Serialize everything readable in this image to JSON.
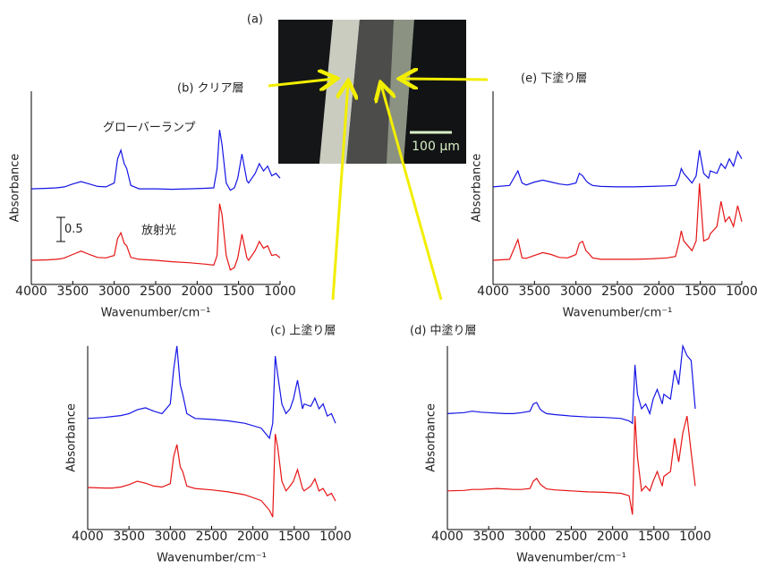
{
  "micrograph": {
    "label": "(a)",
    "scale_bar": "100 μm"
  },
  "chart_data": [
    {
      "type": "line",
      "title": "(b) クリア層",
      "x_label": "Wavenumber/cm⁻¹",
      "y_label": "Absorbance",
      "xlim": [
        4000,
        1000
      ],
      "xticks": [
        4000,
        3500,
        3000,
        2500,
        2000,
        1500,
        1000
      ],
      "ylim": [
        0,
        4
      ],
      "scale_bar": 0.5,
      "x": [
        4000,
        3800,
        3700,
        3650,
        3600,
        3500,
        3400,
        3300,
        3200,
        3100,
        3000,
        2960,
        2920,
        2880,
        2850,
        2800,
        2700,
        2500,
        2300,
        2100,
        1900,
        1800,
        1760,
        1730,
        1700,
        1650,
        1600,
        1550,
        1510,
        1460,
        1400,
        1380,
        1300,
        1250,
        1200,
        1150,
        1100,
        1050,
        1000
      ],
      "series": [
        {
          "name": "グローバーランプ",
          "color": "#1414e6",
          "values": [
            1.98,
            1.99,
            2.0,
            2.01,
            2.02,
            2.08,
            2.13,
            2.08,
            2.03,
            2.02,
            2.1,
            2.6,
            2.78,
            2.5,
            2.4,
            2.05,
            1.98,
            1.98,
            1.97,
            1.98,
            1.99,
            2.0,
            2.4,
            3.2,
            2.9,
            2.1,
            1.95,
            2.0,
            2.2,
            2.7,
            2.15,
            2.1,
            2.3,
            2.5,
            2.35,
            2.45,
            2.25,
            2.3,
            2.2
          ]
        },
        {
          "name": "放射光",
          "color": "#e61414",
          "values": [
            0.5,
            0.51,
            0.52,
            0.53,
            0.55,
            0.62,
            0.69,
            0.62,
            0.56,
            0.55,
            0.6,
            0.95,
            1.07,
            0.85,
            0.8,
            0.56,
            0.52,
            0.5,
            0.47,
            0.45,
            0.42,
            0.4,
            0.6,
            1.67,
            1.45,
            0.6,
            0.3,
            0.35,
            0.55,
            1.04,
            0.55,
            0.5,
            0.7,
            0.89,
            0.75,
            0.8,
            0.6,
            0.62,
            0.55
          ]
        }
      ]
    },
    {
      "type": "line",
      "title": "(c) 上塗り層",
      "x_label": "Wavenumber/cm⁻¹",
      "y_label": "Absorbance",
      "xlim": [
        4000,
        1000
      ],
      "xticks": [
        4000,
        3500,
        3000,
        2500,
        2000,
        1500,
        1000
      ],
      "ylim": [
        0,
        3.8
      ],
      "x": [
        4000,
        3800,
        3700,
        3650,
        3600,
        3500,
        3400,
        3300,
        3200,
        3100,
        3000,
        2960,
        2920,
        2880,
        2850,
        2800,
        2700,
        2500,
        2300,
        2100,
        1900,
        1800,
        1760,
        1730,
        1700,
        1650,
        1600,
        1550,
        1510,
        1460,
        1400,
        1380,
        1300,
        1250,
        1200,
        1150,
        1100,
        1050,
        1000
      ],
      "series": [
        {
          "color": "#1414e6",
          "values": [
            2.3,
            2.32,
            2.34,
            2.35,
            2.36,
            2.4,
            2.48,
            2.52,
            2.45,
            2.4,
            2.6,
            3.3,
            3.8,
            3.0,
            2.8,
            2.4,
            2.3,
            2.28,
            2.25,
            2.2,
            2.1,
            1.89,
            2.2,
            3.59,
            3.2,
            2.6,
            2.4,
            2.5,
            2.7,
            3.09,
            2.5,
            2.6,
            2.55,
            2.72,
            2.5,
            2.6,
            2.35,
            2.4,
            2.2
          ]
        },
        {
          "color": "#e61414",
          "values": [
            0.87,
            0.86,
            0.86,
            0.87,
            0.88,
            0.93,
            1.0,
            0.96,
            0.9,
            0.88,
            0.95,
            1.5,
            1.76,
            1.3,
            1.2,
            0.9,
            0.85,
            0.82,
            0.78,
            0.72,
            0.6,
            0.4,
            0.26,
            1.98,
            1.7,
            1.0,
            0.8,
            0.9,
            1.0,
            1.24,
            0.85,
            0.8,
            0.9,
            1.05,
            0.8,
            0.85,
            0.7,
            0.75,
            0.59
          ]
        }
      ]
    },
    {
      "type": "line",
      "title": "(d) 中塗り層",
      "x_label": "Wavenumber/cm⁻¹",
      "y_label": "Absorbance",
      "xlim": [
        4000,
        1000
      ],
      "xticks": [
        4000,
        3500,
        3000,
        2500,
        2000,
        1500,
        1000
      ],
      "ylim": [
        0,
        3.8
      ],
      "x": [
        4000,
        3800,
        3700,
        3650,
        3600,
        3500,
        3400,
        3300,
        3200,
        3100,
        3000,
        2960,
        2920,
        2880,
        2850,
        2800,
        2700,
        2500,
        2300,
        2100,
        1900,
        1800,
        1760,
        1730,
        1700,
        1650,
        1600,
        1550,
        1510,
        1460,
        1400,
        1380,
        1300,
        1250,
        1200,
        1150,
        1100,
        1050,
        1000
      ],
      "series": [
        {
          "color": "#1414e6",
          "values": [
            2.4,
            2.42,
            2.45,
            2.44,
            2.43,
            2.42,
            2.41,
            2.4,
            2.4,
            2.42,
            2.45,
            2.6,
            2.63,
            2.5,
            2.45,
            2.4,
            2.38,
            2.35,
            2.33,
            2.32,
            2.3,
            2.25,
            2.2,
            3.41,
            2.8,
            2.5,
            2.6,
            2.4,
            2.7,
            2.9,
            2.6,
            2.8,
            2.7,
            3.3,
            3.0,
            3.8,
            3.6,
            3.5,
            2.5
          ]
        },
        {
          "color": "#e61414",
          "values": [
            0.8,
            0.81,
            0.83,
            0.83,
            0.83,
            0.84,
            0.85,
            0.84,
            0.83,
            0.83,
            0.85,
            1.0,
            1.06,
            0.95,
            0.9,
            0.84,
            0.82,
            0.8,
            0.78,
            0.77,
            0.75,
            0.7,
            0.31,
            2.35,
            1.5,
            0.8,
            0.9,
            0.8,
            1.0,
            1.2,
            0.9,
            1.1,
            1.2,
            1.89,
            1.4,
            2.0,
            2.35,
            1.6,
            0.9
          ]
        }
      ]
    },
    {
      "type": "line",
      "title": "(e) 下塗り層",
      "x_label": "Wavenumber/cm⁻¹",
      "y_label": "Absorbance",
      "xlim": [
        4000,
        1000
      ],
      "xticks": [
        4000,
        3500,
        3000,
        2500,
        2000,
        1500,
        1000
      ],
      "ylim": [
        0,
        4
      ],
      "x": [
        4000,
        3800,
        3700,
        3650,
        3600,
        3500,
        3400,
        3300,
        3200,
        3100,
        3000,
        2960,
        2920,
        2880,
        2850,
        2800,
        2700,
        2500,
        2300,
        2100,
        1900,
        1800,
        1760,
        1730,
        1700,
        1650,
        1600,
        1550,
        1510,
        1460,
        1400,
        1380,
        1300,
        1250,
        1200,
        1150,
        1100,
        1050,
        1000
      ],
      "series": [
        {
          "color": "#1414e6",
          "values": [
            2.02,
            2.05,
            2.35,
            2.1,
            2.06,
            2.12,
            2.16,
            2.12,
            2.08,
            2.06,
            2.1,
            2.3,
            2.25,
            2.15,
            2.1,
            2.05,
            2.03,
            2.02,
            2.02,
            2.03,
            2.04,
            2.05,
            2.2,
            2.4,
            2.3,
            2.2,
            2.1,
            2.25,
            2.78,
            2.3,
            2.2,
            2.35,
            2.3,
            2.5,
            2.4,
            2.6,
            2.45,
            2.75,
            2.6
          ]
        },
        {
          "color": "#e61414",
          "values": [
            0.5,
            0.52,
            0.93,
            0.55,
            0.54,
            0.6,
            0.66,
            0.62,
            0.56,
            0.55,
            0.62,
            0.85,
            0.89,
            0.7,
            0.65,
            0.55,
            0.52,
            0.52,
            0.52,
            0.53,
            0.55,
            0.58,
            0.85,
            1.11,
            0.9,
            0.8,
            0.7,
            0.9,
            2.09,
            0.9,
            0.95,
            1.05,
            1.2,
            1.72,
            1.3,
            1.4,
            1.2,
            1.63,
            1.3
          ]
        }
      ]
    }
  ]
}
